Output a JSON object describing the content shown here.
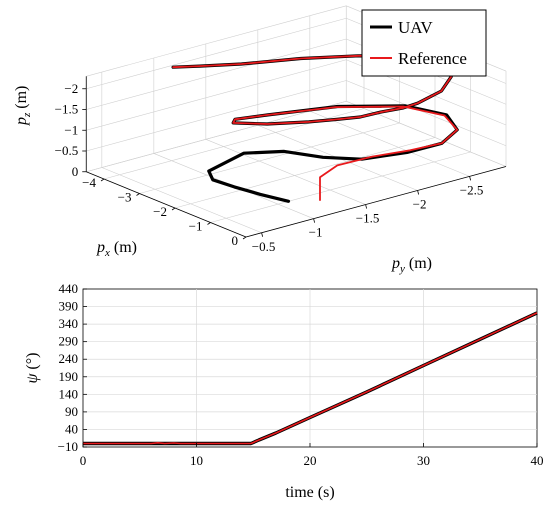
{
  "chart_data": [
    {
      "type": "line",
      "projection": "3d",
      "xlabel": "p_x (m)",
      "ylabel": "p_y (m)",
      "zlabel": "p_z (m)",
      "x_ticks": [
        "-4",
        "-3",
        "-2",
        "-1",
        "0"
      ],
      "y_ticks": [
        "-0.5",
        "-1",
        "-1.5",
        "-2",
        "-2.5"
      ],
      "z_ticks": [
        "-2",
        "-1.5",
        "-1",
        "-0.5",
        "0"
      ],
      "xlim": [
        -4.5,
        0
      ],
      "ylim": [
        -0.3,
        -2.9
      ],
      "zlim": [
        0,
        -2.3
      ],
      "grid": true,
      "legend_position": "top-right",
      "series": [
        {
          "name": "UAV",
          "color": "#000000",
          "x": [
            -1.0,
            -1.5,
            -2.0,
            -2.4,
            -2.6,
            -2.55,
            -2.0,
            -1.2,
            -0.55,
            -0.15,
            -0.05,
            -0.35,
            -1.0,
            -1.75,
            -2.4,
            -2.75,
            -2.8,
            -2.5,
            -1.95,
            -1.45,
            -1.1,
            -0.8,
            -0.6,
            -0.4,
            -0.35,
            -0.5,
            -0.9,
            -1.4,
            -2.0,
            -2.55,
            -3.0,
            -3.35,
            -3.65,
            -3.9
          ],
          "y": [
            -1.1,
            -1.0,
            -0.92,
            -0.85,
            -0.88,
            -1.2,
            -1.4,
            -1.5,
            -1.65,
            -1.95,
            -2.25,
            -2.5,
            -2.62,
            -2.48,
            -2.05,
            -1.5,
            -1.2,
            -1.08,
            -1.22,
            -1.45,
            -1.6,
            -1.72,
            -1.85,
            -2.0,
            -2.12,
            -2.4,
            -2.63,
            -2.75,
            -2.65,
            -2.3,
            -1.9,
            -1.45,
            -1.15,
            -0.98
          ],
          "z": [
            0.0,
            -0.06,
            -0.12,
            -0.2,
            -0.32,
            -0.55,
            -0.65,
            -0.72,
            -0.8,
            -0.9,
            -0.95,
            -1.0,
            -1.05,
            -1.1,
            -1.15,
            -1.2,
            -1.28,
            -1.38,
            -1.45,
            -1.52,
            -1.6,
            -1.68,
            -1.78,
            -1.85,
            -1.9,
            -1.95,
            -2.0,
            -2.05,
            -2.1,
            -2.15,
            -2.2,
            -2.25,
            -2.3,
            -2.3
          ]
        },
        {
          "name": "Reference",
          "color": "#e8191c",
          "x": [
            -0.7,
            -0.7,
            -0.65,
            -0.4,
            -0.15,
            -0.05,
            -0.35,
            -1.0,
            -1.75,
            -2.4,
            -2.75,
            -2.8,
            -2.5,
            -1.95,
            -1.45,
            -1.1,
            -0.8,
            -0.6,
            -0.4,
            -0.35,
            -0.5,
            -0.9,
            -1.4,
            -2.0,
            -2.55,
            -3.0,
            -3.35,
            -3.65,
            -3.9
          ],
          "y": [
            -1.3,
            -1.3,
            -1.45,
            -1.7,
            -1.98,
            -2.25,
            -2.5,
            -2.6,
            -2.46,
            -2.03,
            -1.5,
            -1.2,
            -1.08,
            -1.22,
            -1.45,
            -1.6,
            -1.72,
            -1.85,
            -2.0,
            -2.12,
            -2.4,
            -2.63,
            -2.75,
            -2.65,
            -2.3,
            -1.9,
            -1.45,
            -1.15,
            -0.98
          ],
          "z": [
            0.0,
            -0.55,
            -0.75,
            -0.88,
            -0.93,
            -0.95,
            -1.0,
            -1.05,
            -1.1,
            -1.15,
            -1.2,
            -1.28,
            -1.38,
            -1.45,
            -1.52,
            -1.6,
            -1.68,
            -1.78,
            -1.85,
            -1.9,
            -1.95,
            -2.0,
            -2.05,
            -2.1,
            -2.15,
            -2.2,
            -2.25,
            -2.3,
            -2.3
          ]
        }
      ]
    },
    {
      "type": "line",
      "xlabel": "time (s)",
      "ylabel": "ψ (°)",
      "xlim": [
        0,
        40
      ],
      "ylim": [
        -10,
        440
      ],
      "x_ticks": [
        0,
        10,
        20,
        30,
        40
      ],
      "y_ticks": [
        -10,
        40,
        90,
        140,
        190,
        240,
        290,
        340,
        390,
        440
      ],
      "grid": true,
      "series": [
        {
          "name": "UAV",
          "color": "#000000",
          "x": [
            0,
            5,
            10,
            14.8,
            15.5,
            17,
            20,
            25,
            30,
            35,
            40
          ],
          "y": [
            0,
            0,
            0,
            0,
            10,
            30,
            74,
            147,
            222,
            297,
            372
          ]
        },
        {
          "name": "Reference",
          "color": "#e8191c",
          "x": [
            0,
            6,
            6.6,
            7.2,
            8,
            8.6,
            10,
            14.8,
            15.5,
            17,
            20,
            25,
            30,
            35,
            40
          ],
          "y": [
            0,
            0,
            2,
            0,
            1.5,
            0,
            0,
            0,
            10,
            30,
            74,
            147,
            222,
            297,
            372
          ]
        }
      ]
    }
  ],
  "legend": {
    "entries": [
      {
        "label": "UAV",
        "color": "#000000"
      },
      {
        "label": "Reference",
        "color": "#e8191c"
      }
    ]
  },
  "axis_labels_3d": {
    "px": "p_x (m)",
    "py": "p_y (m)",
    "pz": "p_z (m)"
  },
  "axis_labels_2d": {
    "x": "time (s)",
    "y": "ψ (°)"
  }
}
